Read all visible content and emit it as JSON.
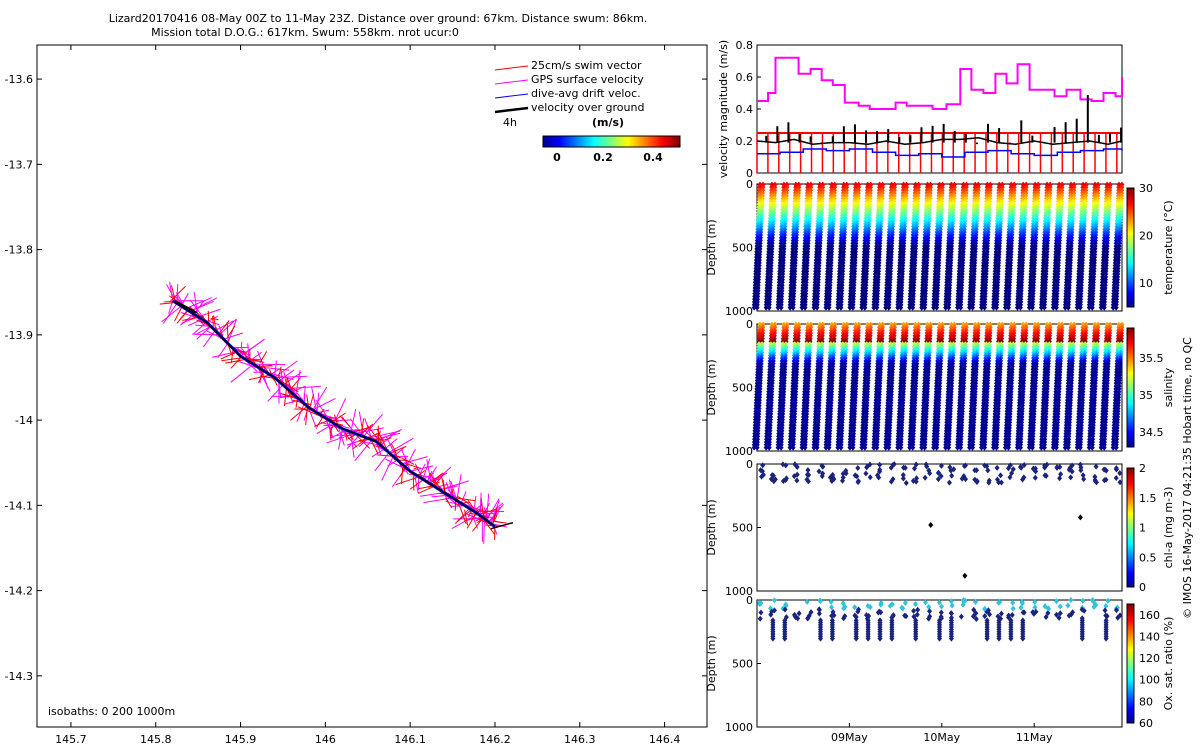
{
  "title": {
    "line1": "Lizard20170416 08-May 00Z to 11-May 23Z. Distance over ground: 67km. Distance swum: 86km.",
    "line2": "Mission total D.O.G.: 617km. Swum: 558km. nrot ucur:0"
  },
  "side_note": "© IMOS 16-May-2017 04:21:35 Hobart time, no QC",
  "colors": {
    "swim": "#ff0000",
    "gps": "#ff00ff",
    "drift": "#0000ff",
    "over_ground": "#000000",
    "depth_mag": "#ff00ff"
  },
  "chart_data": [
    {
      "type": "scatter",
      "name": "track_map",
      "xlim": [
        145.66,
        146.45
      ],
      "ylim": [
        -14.36,
        -13.56
      ],
      "x_ticks": [
        "145.7",
        "145.8",
        "145.9",
        "146",
        "146.1",
        "146.2",
        "146.3",
        "146.4"
      ],
      "y_ticks": [
        "-13.6",
        "-13.7",
        "-13.8",
        "-13.9",
        "-14",
        "-14.1",
        "-14.2",
        "-14.3"
      ],
      "x_tick_values": [
        145.7,
        145.8,
        145.9,
        146.0,
        146.1,
        146.2,
        146.3,
        146.4
      ],
      "y_tick_values": [
        -13.6,
        -13.7,
        -13.8,
        -13.9,
        -14.0,
        -14.1,
        -14.2,
        -14.3
      ],
      "track": {
        "lon": [
          145.82,
          145.86,
          145.9,
          145.94,
          145.98,
          146.02,
          146.06,
          146.1,
          146.14,
          146.18,
          146.2
        ],
        "lat": [
          -13.86,
          -13.885,
          -13.925,
          -13.95,
          -13.985,
          -14.01,
          -14.025,
          -14.06,
          -14.085,
          -14.11,
          -14.125
        ]
      },
      "legend": [
        "25cm/s swim vector",
        "GPS surface velocity",
        "dive-avg drift veloc.",
        "velocity over ground"
      ],
      "legend_time": "4h",
      "colorbar": {
        "label": "(m/s)",
        "ticks": [
          "0",
          "0.2",
          "0.4"
        ],
        "range": [
          0,
          0.5
        ]
      },
      "isobaths": "isobaths: 0   200  1000m"
    },
    {
      "type": "line",
      "name": "velocity_magnitude",
      "ylabel": "velocity magnitude (m/s)",
      "ylim": [
        0,
        0.8
      ],
      "y_ticks": [
        "0",
        "0.2",
        "0.4",
        "0.6",
        "0.8"
      ],
      "y_tick_values": [
        0,
        0.2,
        0.4,
        0.6,
        0.8
      ],
      "x_days": [
        8.0,
        11.95
      ],
      "series": [
        {
          "color": "#ff00ff",
          "x": [
            8.0,
            8.12,
            8.2,
            8.32,
            8.45,
            8.58,
            8.7,
            8.82,
            8.95,
            9.1,
            9.22,
            9.35,
            9.5,
            9.62,
            9.75,
            9.9,
            10.05,
            10.2,
            10.32,
            10.45,
            10.58,
            10.7,
            10.82,
            10.95,
            11.1,
            11.22,
            11.35,
            11.5,
            11.62,
            11.75,
            11.88,
            11.95
          ],
          "values": [
            0.45,
            0.5,
            0.72,
            0.72,
            0.62,
            0.65,
            0.58,
            0.55,
            0.44,
            0.42,
            0.4,
            0.4,
            0.44,
            0.42,
            0.42,
            0.4,
            0.43,
            0.65,
            0.52,
            0.5,
            0.62,
            0.56,
            0.68,
            0.52,
            0.52,
            0.48,
            0.52,
            0.46,
            0.45,
            0.5,
            0.48,
            0.6
          ]
        },
        {
          "color": "#000000",
          "x": [
            8.0,
            8.2,
            8.4,
            8.6,
            8.8,
            9.0,
            9.2,
            9.4,
            9.6,
            9.8,
            10.0,
            10.2,
            10.4,
            10.6,
            10.8,
            11.0,
            11.2,
            11.4,
            11.6,
            11.8,
            11.95
          ],
          "values": [
            0.2,
            0.19,
            0.21,
            0.18,
            0.19,
            0.19,
            0.18,
            0.2,
            0.18,
            0.19,
            0.21,
            0.21,
            0.22,
            0.19,
            0.18,
            0.2,
            0.18,
            0.19,
            0.2,
            0.18,
            0.2
          ]
        },
        {
          "color": "#0000ff",
          "x": [
            8.0,
            8.25,
            8.5,
            8.75,
            9.0,
            9.25,
            9.5,
            9.75,
            10.0,
            10.25,
            10.5,
            10.75,
            11.0,
            11.25,
            11.5,
            11.75,
            11.95
          ],
          "values": [
            0.12,
            0.13,
            0.15,
            0.14,
            0.15,
            0.13,
            0.11,
            0.12,
            0.1,
            0.13,
            0.14,
            0.12,
            0.11,
            0.13,
            0.14,
            0.15,
            0.14
          ]
        },
        {
          "color": "#ff0000",
          "x": [
            8.0,
            11.95
          ],
          "values": [
            0.25,
            0.25
          ]
        }
      ]
    },
    {
      "type": "scatter",
      "name": "temperature_section",
      "ylabel": "Depth (m)",
      "y_ticks": [
        "0",
        "500",
        "1000"
      ],
      "cb_label": "temperature (°C)",
      "cb_ticks": [
        "30",
        "20",
        "10"
      ],
      "cb_tick_values": [
        30,
        20,
        10
      ],
      "cb_range": [
        5,
        30
      ],
      "profiles": 31,
      "max_depth": 1000
    },
    {
      "type": "scatter",
      "name": "salinity_section",
      "ylabel": "Depth (m)",
      "y_ticks": [
        "0",
        "500",
        "1000"
      ],
      "cb_label": "salinity",
      "cb_ticks": [
        "35.5",
        "35",
        "34.5"
      ],
      "cb_tick_values": [
        35.5,
        35.0,
        34.5
      ],
      "cb_range": [
        34.3,
        35.9
      ],
      "profiles": 31,
      "max_depth": 1000
    },
    {
      "type": "scatter",
      "name": "chla_section",
      "ylabel": "Depth (m)",
      "y_ticks": [
        "0",
        "500",
        "1000"
      ],
      "cb_label": "chl-a (mg m-3)",
      "cb_ticks": [
        "2",
        "1.5",
        "1",
        "0.5",
        "0"
      ],
      "cb_tick_values": [
        2,
        1.5,
        1,
        0.5,
        0
      ],
      "cb_range": [
        0,
        2
      ],
      "outliers": [
        [
          9.88,
          480
        ],
        [
          10.25,
          880
        ],
        [
          11.5,
          420
        ]
      ]
    },
    {
      "type": "scatter",
      "name": "oxygen_section",
      "ylabel": "Depth (m)",
      "y_ticks": [
        "0",
        "500",
        "1000"
      ],
      "cb_label": "Ox. sat. ratio (%)",
      "cb_ticks": [
        "160",
        "140",
        "120",
        "100",
        "80",
        "60"
      ],
      "cb_tick_values": [
        160,
        140,
        120,
        100,
        80,
        60
      ],
      "cb_range": [
        60,
        170
      ],
      "x_ticks": [
        "09May",
        "10May",
        "11May"
      ],
      "x_tick_values": [
        9.0,
        10.0,
        11.0
      ]
    }
  ]
}
